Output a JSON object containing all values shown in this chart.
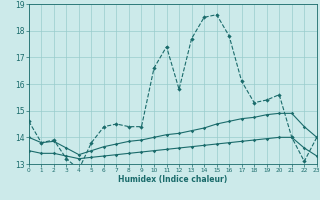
{
  "xlabel": "Humidex (Indice chaleur)",
  "x": [
    0,
    1,
    2,
    3,
    4,
    5,
    6,
    7,
    8,
    9,
    10,
    11,
    12,
    13,
    14,
    15,
    16,
    17,
    18,
    19,
    20,
    21,
    22,
    23
  ],
  "line1": [
    14.6,
    13.8,
    13.9,
    13.2,
    12.8,
    13.8,
    14.4,
    14.5,
    14.4,
    14.4,
    16.6,
    17.4,
    15.8,
    17.7,
    18.5,
    18.6,
    17.8,
    16.1,
    15.3,
    15.4,
    15.6,
    14.0,
    13.1,
    14.0
  ],
  "line2": [
    14.0,
    13.8,
    13.85,
    13.6,
    13.35,
    13.5,
    13.65,
    13.75,
    13.85,
    13.9,
    14.0,
    14.1,
    14.15,
    14.25,
    14.35,
    14.5,
    14.6,
    14.7,
    14.75,
    14.85,
    14.9,
    14.9,
    14.4,
    14.0
  ],
  "line3": [
    13.5,
    13.4,
    13.4,
    13.3,
    13.2,
    13.25,
    13.3,
    13.35,
    13.4,
    13.45,
    13.5,
    13.55,
    13.6,
    13.65,
    13.7,
    13.75,
    13.8,
    13.85,
    13.9,
    13.95,
    14.0,
    14.0,
    13.6,
    13.3
  ],
  "line_color": "#1a6b6b",
  "bg_color": "#cceaea",
  "grid_color": "#99cccc",
  "ylim": [
    13,
    19
  ],
  "xlim": [
    0,
    23
  ],
  "yticks": [
    13,
    14,
    15,
    16,
    17,
    18,
    19
  ]
}
